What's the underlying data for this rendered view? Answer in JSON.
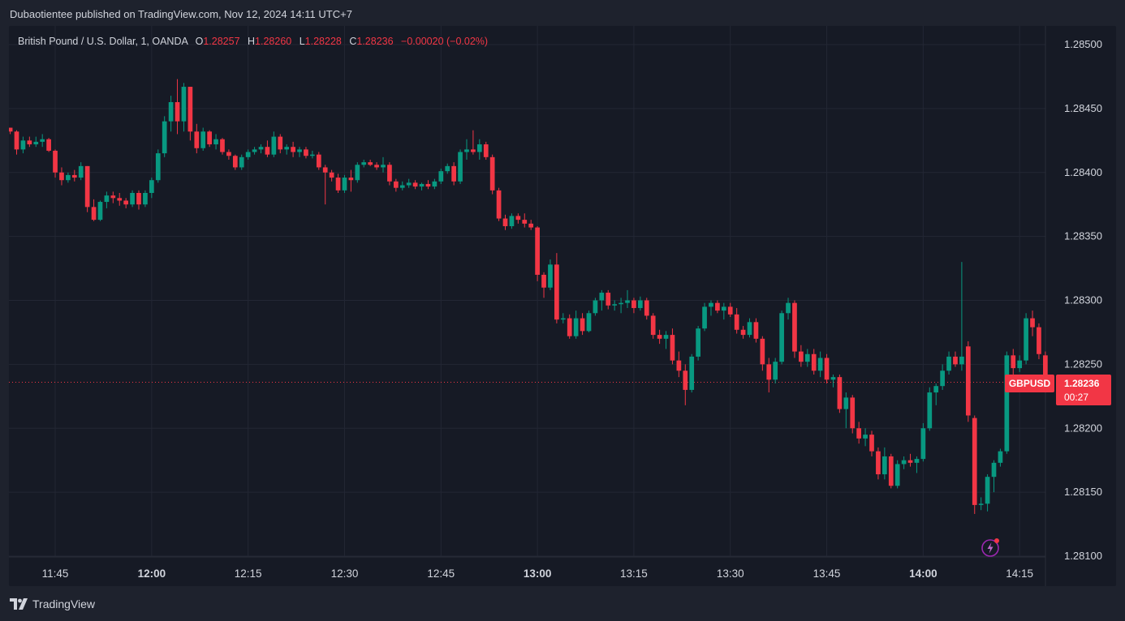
{
  "publisher": "Dubaotientee published on TradingView.com, Nov 12, 2024 14:11 UTC+7",
  "brand": "TradingView",
  "legend": {
    "title": "British Pound / U.S. Dollar, 1, OANDA",
    "open_label": "O",
    "open": "1.28257",
    "high_label": "H",
    "high": "1.28260",
    "low_label": "L",
    "low": "1.28228",
    "close_label": "C",
    "close": "1.28236",
    "change": "−0.00020 (−0.02%)"
  },
  "symbol_tag": "GBPUSD",
  "last_price": "1.28236",
  "countdown": "00:27",
  "colors": {
    "up": "#089981",
    "down": "#f23645",
    "background": "#161a25",
    "grid": "#232734",
    "axis_text": "#d1d4dc"
  },
  "icons": [
    "tradingview-logo-icon",
    "lightning-icon"
  ],
  "chart_data": {
    "type": "candlestick",
    "title": "British Pound / U.S. Dollar, 1, OANDA",
    "x_ticks": [
      {
        "t": "11:45",
        "m": 705,
        "bold": false
      },
      {
        "t": "12:00",
        "m": 720,
        "bold": true
      },
      {
        "t": "12:15",
        "m": 735,
        "bold": false
      },
      {
        "t": "12:30",
        "m": 750,
        "bold": false
      },
      {
        "t": "12:45",
        "m": 765,
        "bold": false
      },
      {
        "t": "13:00",
        "m": 780,
        "bold": true
      },
      {
        "t": "13:15",
        "m": 795,
        "bold": false
      },
      {
        "t": "13:30",
        "m": 810,
        "bold": false
      },
      {
        "t": "13:45",
        "m": 825,
        "bold": false
      },
      {
        "t": "14:00",
        "m": 840,
        "bold": true
      },
      {
        "t": "14:15",
        "m": 855,
        "bold": false
      }
    ],
    "y_ticks": [
      "1.28500",
      "1.28450",
      "1.28400",
      "1.28350",
      "1.28300",
      "1.28250",
      "1.28200",
      "1.28150",
      "1.28100"
    ],
    "ylim": [
      1.281,
      1.285
    ],
    "x_range_minutes": [
      697.8,
      870.0
    ],
    "last_price": 1.28236,
    "start_time": "11:38",
    "candles": [
      [
        1.28435,
        1.28435,
        1.2843,
        1.28432
      ],
      [
        1.28432,
        1.28433,
        1.28414,
        1.28418
      ],
      [
        1.28418,
        1.28428,
        1.28415,
        1.28425
      ],
      [
        1.28425,
        1.28428,
        1.2842,
        1.28422
      ],
      [
        1.28422,
        1.28428,
        1.2842,
        1.28424
      ],
      [
        1.28424,
        1.2843,
        1.2842,
        1.28426
      ],
      [
        1.28426,
        1.28427,
        1.28416,
        1.28417
      ],
      [
        1.28417,
        1.28418,
        1.28396,
        1.284
      ],
      [
        1.284,
        1.28404,
        1.2839,
        1.28394
      ],
      [
        1.28394,
        1.284,
        1.28392,
        1.28398
      ],
      [
        1.28398,
        1.28402,
        1.28393,
        1.28396
      ],
      [
        1.28396,
        1.28408,
        1.28394,
        1.28405
      ],
      [
        1.28405,
        1.28405,
        1.28369,
        1.28373
      ],
      [
        1.28373,
        1.28379,
        1.28362,
        1.28363
      ],
      [
        1.28363,
        1.28378,
        1.28362,
        1.28377
      ],
      [
        1.28377,
        1.28385,
        1.28372,
        1.28382
      ],
      [
        1.28382,
        1.28385,
        1.28376,
        1.2838
      ],
      [
        1.2838,
        1.28384,
        1.28374,
        1.28378
      ],
      [
        1.28378,
        1.2838,
        1.28372,
        1.28375
      ],
      [
        1.28375,
        1.28386,
        1.28373,
        1.28384
      ],
      [
        1.28384,
        1.28386,
        1.28371,
        1.28375
      ],
      [
        1.28375,
        1.28386,
        1.28373,
        1.28384
      ],
      [
        1.28384,
        1.28396,
        1.2838,
        1.28394
      ],
      [
        1.28394,
        1.28418,
        1.28392,
        1.28415
      ],
      [
        1.28415,
        1.28444,
        1.28412,
        1.2844
      ],
      [
        1.2844,
        1.2846,
        1.28432,
        1.28455
      ],
      [
        1.28455,
        1.28473,
        1.2843,
        1.2844
      ],
      [
        1.2844,
        1.2847,
        1.28432,
        1.28467
      ],
      [
        1.28467,
        1.28467,
        1.28425,
        1.28432
      ],
      [
        1.28432,
        1.28438,
        1.28415,
        1.28419
      ],
      [
        1.28419,
        1.28435,
        1.28417,
        1.28432
      ],
      [
        1.28432,
        1.28433,
        1.2842,
        1.28422
      ],
      [
        1.28422,
        1.2843,
        1.28418,
        1.28426
      ],
      [
        1.28426,
        1.28427,
        1.28414,
        1.28416
      ],
      [
        1.28416,
        1.28418,
        1.2841,
        1.28413
      ],
      [
        1.28413,
        1.28414,
        1.28402,
        1.28404
      ],
      [
        1.28404,
        1.28414,
        1.28402,
        1.28412
      ],
      [
        1.28412,
        1.28418,
        1.2841,
        1.28416
      ],
      [
        1.28416,
        1.2842,
        1.28414,
        1.28418
      ],
      [
        1.28418,
        1.28422,
        1.28415,
        1.2842
      ],
      [
        1.2842,
        1.28425,
        1.28412,
        1.28414
      ],
      [
        1.28414,
        1.28432,
        1.28412,
        1.28428
      ],
      [
        1.28428,
        1.2843,
        1.28415,
        1.28418
      ],
      [
        1.28418,
        1.28422,
        1.28414,
        1.2842
      ],
      [
        1.2842,
        1.28424,
        1.28412,
        1.28416
      ],
      [
        1.28416,
        1.2842,
        1.28412,
        1.28418
      ],
      [
        1.28418,
        1.2842,
        1.28411,
        1.28413
      ],
      [
        1.28413,
        1.28417,
        1.28411,
        1.28414
      ],
      [
        1.28414,
        1.28416,
        1.28402,
        1.28404
      ],
      [
        1.28404,
        1.28406,
        1.28375,
        1.284
      ],
      [
        1.284,
        1.28402,
        1.28393,
        1.28396
      ],
      [
        1.28396,
        1.28399,
        1.28384,
        1.28386
      ],
      [
        1.28386,
        1.28398,
        1.28384,
        1.28396
      ],
      [
        1.28396,
        1.28402,
        1.28385,
        1.28394
      ],
      [
        1.28394,
        1.28408,
        1.28392,
        1.28406
      ],
      [
        1.28406,
        1.2841,
        1.28404,
        1.28408
      ],
      [
        1.28408,
        1.2841,
        1.28405,
        1.28406
      ],
      [
        1.28406,
        1.28408,
        1.28402,
        1.28404
      ],
      [
        1.28404,
        1.28412,
        1.284,
        1.28406
      ],
      [
        1.28406,
        1.28408,
        1.2839,
        1.28393
      ],
      [
        1.28393,
        1.28395,
        1.28385,
        1.28388
      ],
      [
        1.28388,
        1.28393,
        1.28386,
        1.2839
      ],
      [
        1.2839,
        1.28395,
        1.28388,
        1.28392
      ],
      [
        1.28392,
        1.28394,
        1.28387,
        1.28389
      ],
      [
        1.28389,
        1.28392,
        1.28386,
        1.28391
      ],
      [
        1.28391,
        1.28394,
        1.28387,
        1.28389
      ],
      [
        1.28389,
        1.28395,
        1.28387,
        1.28393
      ],
      [
        1.28393,
        1.28403,
        1.28391,
        1.28401
      ],
      [
        1.28401,
        1.28407,
        1.28399,
        1.28405
      ],
      [
        1.28405,
        1.28408,
        1.2839,
        1.28393
      ],
      [
        1.28393,
        1.28418,
        1.28391,
        1.28416
      ],
      [
        1.28416,
        1.28426,
        1.2841,
        1.28418
      ],
      [
        1.28418,
        1.28433,
        1.28414,
        1.28416
      ],
      [
        1.28416,
        1.28426,
        1.2841,
        1.28422
      ],
      [
        1.28422,
        1.28424,
        1.2841,
        1.28412
      ],
      [
        1.28412,
        1.28414,
        1.28383,
        1.28386
      ],
      [
        1.28386,
        1.28388,
        1.28362,
        1.28364
      ],
      [
        1.28364,
        1.28367,
        1.28355,
        1.28358
      ],
      [
        1.28358,
        1.28368,
        1.28356,
        1.28366
      ],
      [
        1.28366,
        1.28368,
        1.2836,
        1.28363
      ],
      [
        1.28363,
        1.28368,
        1.28357,
        1.2836
      ],
      [
        1.2836,
        1.28363,
        1.28355,
        1.28357
      ],
      [
        1.28357,
        1.28358,
        1.28315,
        1.2832
      ],
      [
        1.2832,
        1.28322,
        1.28302,
        1.2831
      ],
      [
        1.2831,
        1.28332,
        1.28308,
        1.28328
      ],
      [
        1.28328,
        1.28337,
        1.28282,
        1.28285
      ],
      [
        1.28285,
        1.2829,
        1.28282,
        1.28286
      ],
      [
        1.28286,
        1.28289,
        1.2827,
        1.28272
      ],
      [
        1.28272,
        1.28292,
        1.2827,
        1.28286
      ],
      [
        1.28286,
        1.2829,
        1.28273,
        1.28276
      ],
      [
        1.28276,
        1.28292,
        1.28275,
        1.2829
      ],
      [
        1.2829,
        1.28302,
        1.28288,
        1.283
      ],
      [
        1.283,
        1.28308,
        1.28292,
        1.28306
      ],
      [
        1.28306,
        1.28308,
        1.28293,
        1.28296
      ],
      [
        1.28296,
        1.283,
        1.28292,
        1.28297
      ],
      [
        1.28297,
        1.28302,
        1.2829,
        1.28298
      ],
      [
        1.28298,
        1.28308,
        1.28294,
        1.283
      ],
      [
        1.283,
        1.28302,
        1.2829,
        1.28294
      ],
      [
        1.28294,
        1.28303,
        1.28292,
        1.283
      ],
      [
        1.283,
        1.28302,
        1.28285,
        1.28288
      ],
      [
        1.28288,
        1.2829,
        1.2827,
        1.28273
      ],
      [
        1.28273,
        1.28277,
        1.28266,
        1.2827
      ],
      [
        1.2827,
        1.28276,
        1.28262,
        1.28273
      ],
      [
        1.28273,
        1.28278,
        1.2825,
        1.28253
      ],
      [
        1.28253,
        1.2826,
        1.2824,
        1.28245
      ],
      [
        1.28245,
        1.2825,
        1.28218,
        1.2823
      ],
      [
        1.2823,
        1.28258,
        1.28228,
        1.28256
      ],
      [
        1.28256,
        1.2828,
        1.28253,
        1.28278
      ],
      [
        1.28278,
        1.28298,
        1.28276,
        1.28295
      ],
      [
        1.28295,
        1.283,
        1.28288,
        1.28298
      ],
      [
        1.28298,
        1.283,
        1.2829,
        1.28292
      ],
      [
        1.28292,
        1.28298,
        1.28285,
        1.28295
      ],
      [
        1.28295,
        1.28298,
        1.28287,
        1.28289
      ],
      [
        1.28289,
        1.28294,
        1.28274,
        1.28277
      ],
      [
        1.28277,
        1.2828,
        1.2827,
        1.28273
      ],
      [
        1.28273,
        1.28286,
        1.28271,
        1.28283
      ],
      [
        1.28283,
        1.28286,
        1.28267,
        1.2827
      ],
      [
        1.2827,
        1.28272,
        1.28245,
        1.2825
      ],
      [
        1.2825,
        1.28255,
        1.28228,
        1.28238
      ],
      [
        1.28238,
        1.28255,
        1.28235,
        1.28252
      ],
      [
        1.28252,
        1.28292,
        1.2825,
        1.2829
      ],
      [
        1.2829,
        1.28302,
        1.28285,
        1.28298
      ],
      [
        1.28298,
        1.283,
        1.28255,
        1.2826
      ],
      [
        1.2826,
        1.28265,
        1.28248,
        1.28252
      ],
      [
        1.28252,
        1.28262,
        1.28248,
        1.28258
      ],
      [
        1.28258,
        1.28262,
        1.28242,
        1.28245
      ],
      [
        1.28245,
        1.2826,
        1.2824,
        1.28255
      ],
      [
        1.28255,
        1.28258,
        1.28235,
        1.28238
      ],
      [
        1.28238,
        1.28242,
        1.28232,
        1.2824
      ],
      [
        1.2824,
        1.28242,
        1.28212,
        1.28215
      ],
      [
        1.28215,
        1.28228,
        1.282,
        1.28224
      ],
      [
        1.28224,
        1.28226,
        1.28196,
        1.282
      ],
      [
        1.282,
        1.28205,
        1.28188,
        1.28192
      ],
      [
        1.28192,
        1.282,
        1.28186,
        1.28195
      ],
      [
        1.28195,
        1.28198,
        1.28178,
        1.28182
      ],
      [
        1.28182,
        1.28185,
        1.2816,
        1.28164
      ],
      [
        1.28164,
        1.28185,
        1.2816,
        1.28178
      ],
      [
        1.28178,
        1.2818,
        1.28153,
        1.28155
      ],
      [
        1.28155,
        1.28175,
        1.28153,
        1.28172
      ],
      [
        1.28172,
        1.28178,
        1.28168,
        1.28175
      ],
      [
        1.28175,
        1.2818,
        1.2817,
        1.28173
      ],
      [
        1.28173,
        1.28178,
        1.28165,
        1.28176
      ],
      [
        1.28176,
        1.28204,
        1.28174,
        1.282
      ],
      [
        1.282,
        1.28232,
        1.28198,
        1.28228
      ],
      [
        1.28228,
        1.28235,
        1.28218,
        1.28233
      ],
      [
        1.28233,
        1.2825,
        1.2823,
        1.28245
      ],
      [
        1.28245,
        1.2826,
        1.28242,
        1.28256
      ],
      [
        1.28256,
        1.2826,
        1.28248,
        1.2825
      ],
      [
        1.2825,
        1.2833,
        1.28245,
        1.28256
      ],
      [
        1.28264,
        1.28268,
        1.28205,
        1.2821
      ],
      [
        1.28208,
        1.2821,
        1.28133,
        1.2814
      ],
      [
        1.2814,
        1.28146,
        1.28136,
        1.28141
      ],
      [
        1.28141,
        1.28164,
        1.28135,
        1.28162
      ],
      [
        1.28162,
        1.28175,
        1.2815,
        1.28173
      ],
      [
        1.28173,
        1.28184,
        1.2817,
        1.28182
      ],
      [
        1.28182,
        1.2826,
        1.2818,
        1.28257
      ],
      [
        1.28257,
        1.28262,
        1.2824,
        1.28247
      ],
      [
        1.28247,
        1.28257,
        1.28244,
        1.28253
      ],
      [
        1.28253,
        1.2829,
        1.2825,
        1.28286
      ],
      [
        1.28286,
        1.28292,
        1.28272,
        1.28279
      ],
      [
        1.28279,
        1.28282,
        1.28254,
        1.28258
      ],
      [
        1.28257,
        1.2826,
        1.28228,
        1.28236
      ]
    ]
  }
}
